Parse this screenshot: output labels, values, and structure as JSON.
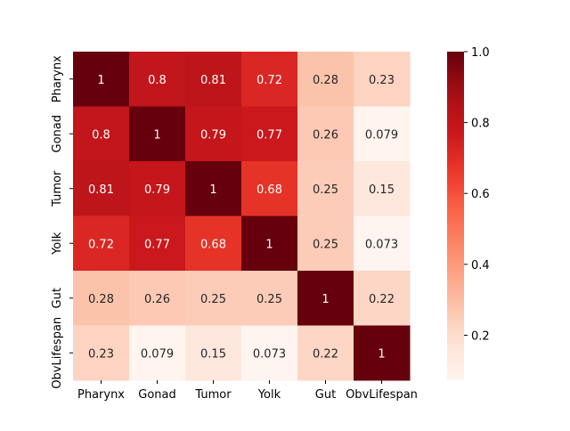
{
  "chart_data": {
    "type": "heatmap",
    "title": "",
    "xlabel": "",
    "ylabel": "",
    "x_labels": [
      "Pharynx",
      "Gonad",
      "Tumor",
      "Yolk",
      "Gut",
      "ObvLifespan"
    ],
    "y_labels": [
      "Pharynx",
      "Gonad",
      "Tumor",
      "Yolk",
      "Gut",
      "ObvLifespan"
    ],
    "values": [
      [
        1,
        0.8,
        0.81,
        0.72,
        0.28,
        0.23
      ],
      [
        0.8,
        1,
        0.79,
        0.77,
        0.26,
        0.079
      ],
      [
        0.81,
        0.79,
        1,
        0.68,
        0.25,
        0.15
      ],
      [
        0.72,
        0.77,
        0.68,
        1,
        0.25,
        0.073
      ],
      [
        0.28,
        0.26,
        0.25,
        0.25,
        1,
        0.22
      ],
      [
        0.23,
        0.079,
        0.15,
        0.073,
        0.22,
        1
      ]
    ],
    "colormap": "Reds",
    "vmin": 0.073,
    "vmax": 1.0,
    "colorbar_ticks": [
      "0.2",
      "0.4",
      "0.6",
      "0.8",
      "1.0"
    ],
    "annotated": true
  }
}
